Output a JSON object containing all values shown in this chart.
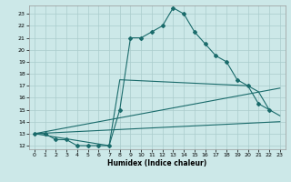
{
  "title": "",
  "xlabel": "Humidex (Indice chaleur)",
  "xlim": [
    -0.5,
    23.5
  ],
  "ylim": [
    11.7,
    23.7
  ],
  "yticks": [
    12,
    13,
    14,
    15,
    16,
    17,
    18,
    19,
    20,
    21,
    22,
    23
  ],
  "xticks": [
    0,
    1,
    2,
    3,
    4,
    5,
    6,
    7,
    8,
    9,
    10,
    11,
    12,
    13,
    14,
    15,
    16,
    17,
    18,
    19,
    20,
    21,
    22,
    23
  ],
  "bg_color": "#cce8e8",
  "grid_color": "#aacccc",
  "line_color": "#1a6b6b",
  "lines": [
    {
      "x": [
        0,
        1,
        2,
        3,
        4,
        5,
        6,
        7,
        8,
        9,
        10,
        11,
        12,
        13,
        14,
        15,
        16,
        17,
        18,
        19,
        20,
        21,
        22
      ],
      "y": [
        13.0,
        13.0,
        12.5,
        12.5,
        12.0,
        12.0,
        12.0,
        12.0,
        15.0,
        21.0,
        21.0,
        21.5,
        22.0,
        23.5,
        23.0,
        21.5,
        20.5,
        19.5,
        19.0,
        17.5,
        17.0,
        15.5,
        15.0
      ],
      "has_markers": true
    },
    {
      "x": [
        0,
        7,
        8,
        20,
        21,
        22,
        23
      ],
      "y": [
        13.0,
        12.0,
        17.5,
        17.0,
        16.5,
        15.0,
        14.5
      ],
      "has_markers": false
    },
    {
      "x": [
        0,
        23
      ],
      "y": [
        13.0,
        16.8
      ],
      "has_markers": false
    },
    {
      "x": [
        0,
        23
      ],
      "y": [
        13.0,
        14.0
      ],
      "has_markers": false
    }
  ]
}
